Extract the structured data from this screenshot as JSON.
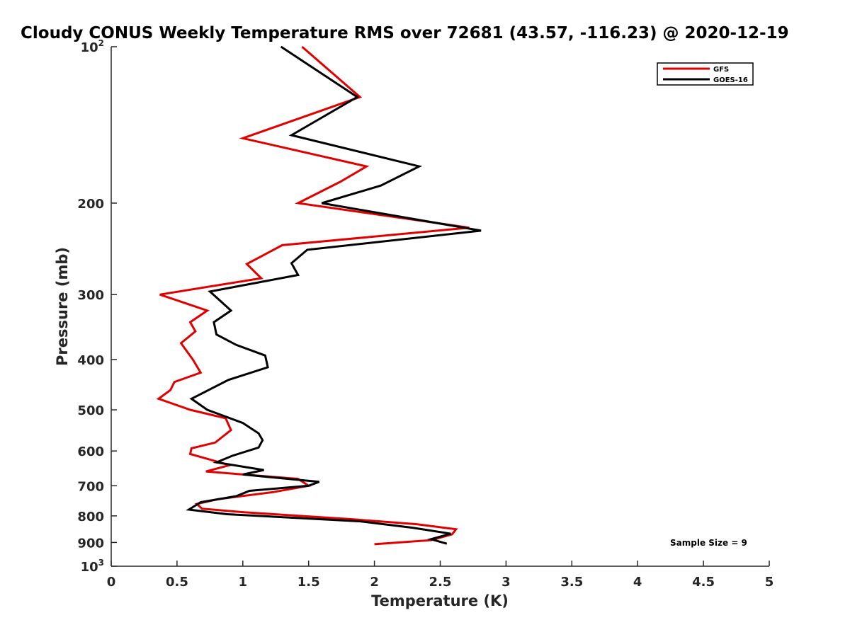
{
  "chart_data": {
    "type": "line",
    "title": "Cloudy CONUS Weekly Temperature RMS over 72681 (43.57, -116.23) @ 2020-12-19",
    "xlabel": "Temperature (K)",
    "ylabel": "Pressure (mb)",
    "xlim": [
      0,
      5
    ],
    "ylim": [
      100,
      1000
    ],
    "y_scale": "log",
    "y_reversed": true,
    "grid": false,
    "legend_position": "top-right",
    "x_ticks": [
      {
        "value": 0,
        "label": "0"
      },
      {
        "value": 0.5,
        "label": "0.5"
      },
      {
        "value": 1,
        "label": "1"
      },
      {
        "value": 1.5,
        "label": "1.5"
      },
      {
        "value": 2,
        "label": "2"
      },
      {
        "value": 2.5,
        "label": "2.5"
      },
      {
        "value": 3,
        "label": "3"
      },
      {
        "value": 3.5,
        "label": "3.5"
      },
      {
        "value": 4,
        "label": "4"
      },
      {
        "value": 4.5,
        "label": "4.5"
      },
      {
        "value": 5,
        "label": "5"
      }
    ],
    "y_ticks": [
      {
        "value": 100,
        "label": "10",
        "sup": "2"
      },
      {
        "value": 200,
        "label": "200"
      },
      {
        "value": 300,
        "label": "300"
      },
      {
        "value": 400,
        "label": "400"
      },
      {
        "value": 500,
        "label": "500"
      },
      {
        "value": 600,
        "label": "600"
      },
      {
        "value": 700,
        "label": "700"
      },
      {
        "value": 800,
        "label": "800"
      },
      {
        "value": 900,
        "label": "900"
      },
      {
        "value": 1000,
        "label": "10",
        "sup": "3"
      }
    ],
    "annotation": "Sample Size = 9",
    "series": [
      {
        "name": "GFS",
        "color": "#e00000",
        "points": [
          [
            1.45,
            100
          ],
          [
            1.89,
            125
          ],
          [
            1.0,
            150
          ],
          [
            1.94,
            170
          ],
          [
            1.74,
            182
          ],
          [
            1.42,
            200
          ],
          [
            2.72,
            223
          ],
          [
            1.3,
            241
          ],
          [
            1.03,
            262
          ],
          [
            1.14,
            279
          ],
          [
            0.37,
            300
          ],
          [
            0.73,
            322
          ],
          [
            0.6,
            339
          ],
          [
            0.64,
            353
          ],
          [
            0.53,
            372
          ],
          [
            0.62,
            400
          ],
          [
            0.68,
            424
          ],
          [
            0.48,
            442
          ],
          [
            0.45,
            458
          ],
          [
            0.36,
            476
          ],
          [
            0.6,
            500
          ],
          [
            0.87,
            519
          ],
          [
            0.91,
            547
          ],
          [
            0.79,
            578
          ],
          [
            0.61,
            593
          ],
          [
            0.6,
            608
          ],
          [
            0.9,
            639
          ],
          [
            0.72,
            657
          ],
          [
            1.42,
            679
          ],
          [
            1.5,
            700
          ],
          [
            1.23,
            720
          ],
          [
            0.81,
            743
          ],
          [
            0.65,
            759
          ],
          [
            0.69,
            775
          ],
          [
            1.0,
            787
          ],
          [
            1.8,
            811
          ],
          [
            2.32,
            830
          ],
          [
            2.62,
            849
          ],
          [
            2.59,
            868
          ],
          [
            2.43,
            891
          ],
          [
            2.0,
            907
          ]
        ]
      },
      {
        "name": "GOES-16",
        "color": "#000000",
        "points": [
          [
            1.29,
            100
          ],
          [
            1.87,
            125
          ],
          [
            1.37,
            148
          ],
          [
            2.34,
            170
          ],
          [
            2.05,
            185
          ],
          [
            1.6,
            200
          ],
          [
            2.81,
            226
          ],
          [
            1.49,
            246
          ],
          [
            1.37,
            261
          ],
          [
            1.42,
            275
          ],
          [
            0.75,
            296
          ],
          [
            0.91,
            322
          ],
          [
            0.78,
            339
          ],
          [
            0.8,
            358
          ],
          [
            0.95,
            375
          ],
          [
            1.17,
            393
          ],
          [
            1.19,
            414
          ],
          [
            0.89,
            438
          ],
          [
            0.61,
            476
          ],
          [
            0.73,
            500
          ],
          [
            1.0,
            530
          ],
          [
            1.12,
            555
          ],
          [
            1.15,
            572
          ],
          [
            1.12,
            591
          ],
          [
            0.92,
            613
          ],
          [
            0.8,
            631
          ],
          [
            1.16,
            653
          ],
          [
            1.0,
            666
          ],
          [
            1.58,
            688
          ],
          [
            1.5,
            700
          ],
          [
            1.05,
            716
          ],
          [
            0.95,
            733
          ],
          [
            0.68,
            753
          ],
          [
            0.59,
            778
          ],
          [
            0.88,
            794
          ],
          [
            1.9,
            820
          ],
          [
            2.29,
            843
          ],
          [
            2.58,
            866
          ],
          [
            2.43,
            887
          ],
          [
            2.55,
            905
          ]
        ]
      }
    ]
  }
}
